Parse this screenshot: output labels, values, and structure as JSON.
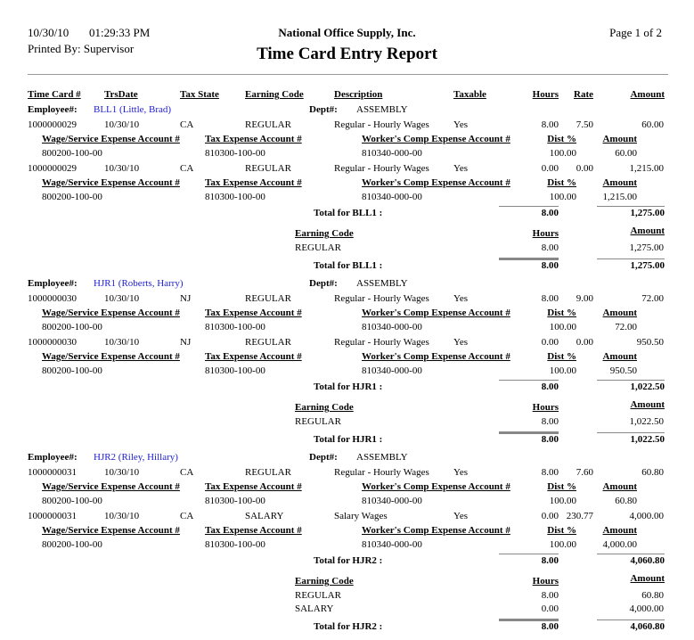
{
  "header": {
    "date": "10/30/10",
    "time": "01:29:33 PM",
    "company": "National Office Supply, Inc.",
    "page": "Page 1 of  2",
    "printed_by": "Printed By: Supervisor",
    "title": "Time Card Entry Report"
  },
  "columns": {
    "timecard": "Time Card #",
    "trsdate": "TrsDate",
    "taxstate": "Tax State",
    "earning_code": "Earning Code",
    "description": "Description",
    "taxable": "Taxable",
    "hours": "Hours",
    "rate": "Rate",
    "amount": "Amount"
  },
  "labels": {
    "employee": "Employee#:",
    "dept": "Dept#:",
    "wage_account": "Wage/Service Expense Account #",
    "tax_account": "Tax Expense Account #",
    "comp_account": "Worker's Comp Expense Account #",
    "dist": "Dist %",
    "amount": "Amount",
    "earning_code": "Earning Code",
    "hours": "Hours"
  },
  "employees": [
    {
      "employee": "BLL1 (Little, Brad)",
      "dept": "ASSEMBLY",
      "entries": [
        {
          "timecard": "1000000029",
          "trsdate": "10/30/10",
          "taxstate": "CA",
          "earning_code": "REGULAR",
          "description": "Regular - Hourly Wages",
          "taxable": "Yes",
          "hours": "8.00",
          "rate": "7.50",
          "amount": "60.00",
          "wage_account": "800200-100-00",
          "tax_account": "810300-100-00",
          "comp_account": "810340-000-00",
          "dist": "100.00",
          "dist_amount": "60.00"
        },
        {
          "timecard": "1000000029",
          "trsdate": "10/30/10",
          "taxstate": "CA",
          "earning_code": "REGULAR",
          "description": "Regular - Hourly Wages",
          "taxable": "Yes",
          "hours": "0.00",
          "rate": "0.00",
          "amount": "1,215.00",
          "wage_account": "800200-100-00",
          "tax_account": "810300-100-00",
          "comp_account": "810340-000-00",
          "dist": "100.00",
          "dist_amount": "1,215.00"
        }
      ],
      "total_label": "Total for BLL1 :",
      "total_hours": "8.00",
      "total_amount": "1,275.00",
      "summary": [
        {
          "code": "REGULAR",
          "hours": "8.00",
          "amount": "1,275.00"
        }
      ]
    },
    {
      "employee": "HJR1 (Roberts, Harry)",
      "dept": "ASSEMBLY",
      "entries": [
        {
          "timecard": "1000000030",
          "trsdate": "10/30/10",
          "taxstate": "NJ",
          "earning_code": "REGULAR",
          "description": "Regular - Hourly Wages",
          "taxable": "Yes",
          "hours": "8.00",
          "rate": "9.00",
          "amount": "72.00",
          "wage_account": "800200-100-00",
          "tax_account": "810300-100-00",
          "comp_account": "810340-000-00",
          "dist": "100.00",
          "dist_amount": "72.00"
        },
        {
          "timecard": "1000000030",
          "trsdate": "10/30/10",
          "taxstate": "NJ",
          "earning_code": "REGULAR",
          "description": "Regular - Hourly Wages",
          "taxable": "Yes",
          "hours": "0.00",
          "rate": "0.00",
          "amount": "950.50",
          "wage_account": "800200-100-00",
          "tax_account": "810300-100-00",
          "comp_account": "810340-000-00",
          "dist": "100.00",
          "dist_amount": "950.50"
        }
      ],
      "total_label": "Total for HJR1 :",
      "total_hours": "8.00",
      "total_amount": "1,022.50",
      "summary": [
        {
          "code": "REGULAR",
          "hours": "8.00",
          "amount": "1,022.50"
        }
      ]
    },
    {
      "employee": "HJR2 (Riley, Hillary)",
      "dept": "ASSEMBLY",
      "entries": [
        {
          "timecard": "1000000031",
          "trsdate": "10/30/10",
          "taxstate": "CA",
          "earning_code": "REGULAR",
          "description": "Regular - Hourly Wages",
          "taxable": "Yes",
          "hours": "8.00",
          "rate": "7.60",
          "amount": "60.80",
          "wage_account": "800200-100-00",
          "tax_account": "810300-100-00",
          "comp_account": "810340-000-00",
          "dist": "100.00",
          "dist_amount": "60.80"
        },
        {
          "timecard": "1000000031",
          "trsdate": "10/30/10",
          "taxstate": "CA",
          "earning_code": "SALARY",
          "description": "Salary Wages",
          "taxable": "Yes",
          "hours": "0.00",
          "rate": "230.77",
          "amount": "4,000.00",
          "wage_account": "800200-100-00",
          "tax_account": "810300-100-00",
          "comp_account": "810340-000-00",
          "dist": "100.00",
          "dist_amount": "4,000.00"
        }
      ],
      "total_label": "Total for HJR2 :",
      "total_hours": "8.00",
      "total_amount": "4,060.80",
      "summary": [
        {
          "code": "REGULAR",
          "hours": "8.00",
          "amount": "60.80"
        },
        {
          "code": "SALARY",
          "hours": "0.00",
          "amount": "4,000.00"
        }
      ]
    }
  ]
}
